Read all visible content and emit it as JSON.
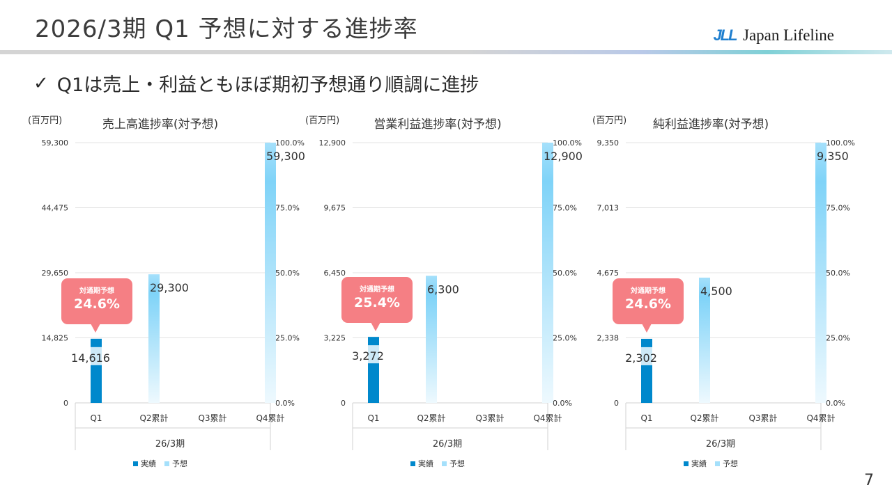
{
  "title": "2026/3期 Q1 予想に対する進捗率",
  "logo": {
    "mark": "JLL",
    "text": "Japan Lifeline"
  },
  "subtitle": "Q1は売上・利益ともほぼ期初予想通り順調に進捗",
  "icons": {
    "check": "check-icon"
  },
  "colors": {
    "actual": "#0088cc",
    "forecast": "#a5e0fb",
    "callout": "#f57f84"
  },
  "page_number": "7",
  "charts": [
    {
      "unit": "(百万円)",
      "title": "売上高進捗率(対予想)",
      "period": "26/3期",
      "legend": {
        "actual": "実績",
        "forecast": "予想"
      },
      "callout": {
        "label": "対通期予想",
        "value": "24.6%"
      }
    },
    {
      "unit": "(百万円)",
      "title": "営業利益進捗率(対予想)",
      "period": "26/3期",
      "legend": {
        "actual": "実績",
        "forecast": "予想"
      },
      "callout": {
        "label": "対通期予想",
        "value": "25.4%"
      }
    },
    {
      "unit": "(百万円)",
      "title": "純利益進捗率(対予想)",
      "period": "26/3期",
      "legend": {
        "actual": "実績",
        "forecast": "予想"
      },
      "callout": {
        "label": "対通期予想",
        "value": "24.6%"
      }
    }
  ],
  "chart_data": [
    {
      "type": "bar",
      "title": "売上高進捗率(対予想)",
      "ylabel": "(百万円)",
      "xlabel": "26/3期",
      "categories": [
        "Q1",
        "Q2累計",
        "Q3累計",
        "Q4累計"
      ],
      "series": [
        {
          "name": "実績",
          "values": [
            14616,
            null,
            null,
            null
          ],
          "labels": [
            "14,616",
            "",
            "",
            ""
          ]
        },
        {
          "name": "予想",
          "values": [
            null,
            29300,
            null,
            59300
          ],
          "labels": [
            "",
            "29,300",
            "",
            "59,300"
          ]
        }
      ],
      "ylim": [
        0,
        59300
      ],
      "yticks": [
        "0",
        "14,825",
        "29,650",
        "44,475",
        "59,300"
      ],
      "y2ticks": [
        "0.0%",
        "25.0%",
        "50.0%",
        "75.0%",
        "100.0%"
      ],
      "legend": "bottom",
      "grid": true
    },
    {
      "type": "bar",
      "title": "営業利益進捗率(対予想)",
      "ylabel": "(百万円)",
      "xlabel": "26/3期",
      "categories": [
        "Q1",
        "Q2累計",
        "Q3累計",
        "Q4累計"
      ],
      "series": [
        {
          "name": "実績",
          "values": [
            3272,
            null,
            null,
            null
          ],
          "labels": [
            "3,272",
            "",
            "",
            ""
          ]
        },
        {
          "name": "予想",
          "values": [
            null,
            6300,
            null,
            12900
          ],
          "labels": [
            "",
            "6,300",
            "",
            "12,900"
          ]
        }
      ],
      "ylim": [
        0,
        12900
      ],
      "yticks": [
        "0",
        "3,225",
        "6,450",
        "9,675",
        "12,900"
      ],
      "y2ticks": [
        "0.0%",
        "25.0%",
        "50.0%",
        "75.0%",
        "100.0%"
      ],
      "legend": "bottom",
      "grid": true
    },
    {
      "type": "bar",
      "title": "純利益進捗率(対予想)",
      "ylabel": "(百万円)",
      "xlabel": "26/3期",
      "categories": [
        "Q1",
        "Q2累計",
        "Q3累計",
        "Q4累計"
      ],
      "series": [
        {
          "name": "実績",
          "values": [
            2302,
            null,
            null,
            null
          ],
          "labels": [
            "2,302",
            "",
            "",
            ""
          ]
        },
        {
          "name": "予想",
          "values": [
            null,
            4500,
            null,
            9350
          ],
          "labels": [
            "",
            "4,500",
            "",
            "9,350"
          ]
        }
      ],
      "ylim": [
        0,
        9350
      ],
      "yticks": [
        "0",
        "2,338",
        "4,675",
        "7,013",
        "9,350"
      ],
      "y2ticks": [
        "0.0%",
        "25.0%",
        "50.0%",
        "75.0%",
        "100.0%"
      ],
      "legend": "bottom",
      "grid": true
    }
  ]
}
